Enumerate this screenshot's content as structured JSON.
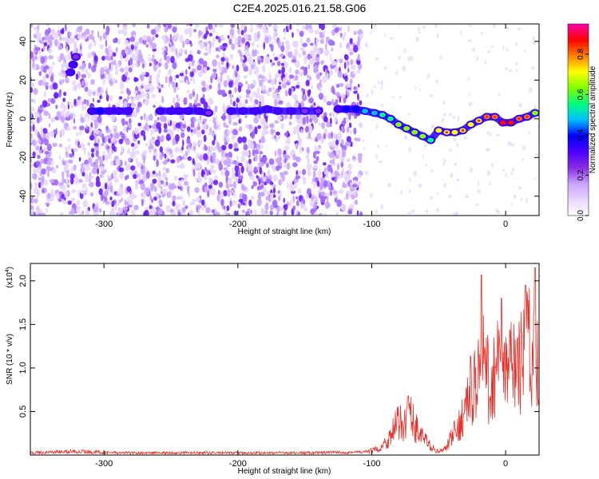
{
  "page": {
    "title": "C2E4.2025.016.21.58.G06"
  },
  "chart_data": [
    {
      "type": "heatmap",
      "xlabel": "Height of straight line (km)",
      "ylabel": "Frequency (Hz)",
      "xlim": [
        -355,
        25
      ],
      "ylim": [
        -50,
        49
      ],
      "xticks": [
        -300,
        -200,
        -100,
        0
      ],
      "yticks": [
        -40,
        -20,
        0,
        20,
        40
      ],
      "colorbar": {
        "label": "Normalized spectral amplitude",
        "range": [
          0,
          0.95
        ],
        "ticks": [
          "0.0",
          "0.2",
          "0.4",
          "0.6",
          "0.8"
        ],
        "colormap": [
          "#ffffff",
          "#e8d5ff",
          "#c9a3ff",
          "#8a2be2",
          "#4b00ff",
          "#0000ff",
          "#00bfff",
          "#00ff80",
          "#80ff00",
          "#ffff00",
          "#ff8000",
          "#ff0000",
          "#ff00aa"
        ]
      },
      "trace": [
        {
          "x": -309,
          "y": 4,
          "a": 0.35
        },
        {
          "x": -303,
          "y": 4,
          "a": 0.4
        },
        {
          "x": -296,
          "y": 4,
          "a": 0.35
        },
        {
          "x": -289,
          "y": 4,
          "a": 0.3
        },
        {
          "x": -282,
          "y": 4,
          "a": 0.3
        },
        {
          "x": -258,
          "y": 4,
          "a": 0.3
        },
        {
          "x": -250,
          "y": 4,
          "a": 0.35
        },
        {
          "x": -244,
          "y": 4,
          "a": 0.3
        },
        {
          "x": -237,
          "y": 4,
          "a": 0.35
        },
        {
          "x": -229,
          "y": 4,
          "a": 0.3
        },
        {
          "x": -222,
          "y": 3,
          "a": 0.25
        },
        {
          "x": -205,
          "y": 4,
          "a": 0.3
        },
        {
          "x": -196,
          "y": 4,
          "a": 0.35
        },
        {
          "x": -187,
          "y": 4,
          "a": 0.35
        },
        {
          "x": -178,
          "y": 5,
          "a": 0.35
        },
        {
          "x": -170,
          "y": 4,
          "a": 0.3
        },
        {
          "x": -160,
          "y": 4,
          "a": 0.3
        },
        {
          "x": -150,
          "y": 4,
          "a": 0.25
        },
        {
          "x": -140,
          "y": 4,
          "a": 0.25
        },
        {
          "x": -125,
          "y": 5,
          "a": 0.35
        },
        {
          "x": -119,
          "y": 5,
          "a": 0.4
        },
        {
          "x": -112,
          "y": 5,
          "a": 0.4
        },
        {
          "x": -105,
          "y": 4,
          "a": 0.45
        },
        {
          "x": -98,
          "y": 3,
          "a": 0.5
        },
        {
          "x": -92,
          "y": 2,
          "a": 0.55
        },
        {
          "x": -86,
          "y": 0,
          "a": 0.55
        },
        {
          "x": -80,
          "y": -3,
          "a": 0.6
        },
        {
          "x": -74,
          "y": -5,
          "a": 0.6
        },
        {
          "x": -68,
          "y": -7,
          "a": 0.65
        },
        {
          "x": -62,
          "y": -9,
          "a": 0.6
        },
        {
          "x": -56,
          "y": -11,
          "a": 0.55
        },
        {
          "x": -50,
          "y": -6,
          "a": 0.7
        },
        {
          "x": -44,
          "y": -7,
          "a": 0.75
        },
        {
          "x": -38,
          "y": -7,
          "a": 0.7
        },
        {
          "x": -32,
          "y": -6,
          "a": 0.75
        },
        {
          "x": -26,
          "y": -3,
          "a": 0.7
        },
        {
          "x": -20,
          "y": -1,
          "a": 0.75
        },
        {
          "x": -14,
          "y": 1,
          "a": 0.8
        },
        {
          "x": -8,
          "y": 1,
          "a": 0.8
        },
        {
          "x": -2,
          "y": -2,
          "a": 0.9
        },
        {
          "x": 4,
          "y": -2,
          "a": 0.9
        },
        {
          "x": 10,
          "y": 0,
          "a": 0.8
        },
        {
          "x": 16,
          "y": 1,
          "a": 0.8
        },
        {
          "x": 22,
          "y": 3,
          "a": 0.65
        }
      ],
      "streak": [
        {
          "x": -325,
          "y": 24,
          "a": 0.3
        },
        {
          "x": -323,
          "y": 28,
          "a": 0.3
        },
        {
          "x": -321,
          "y": 32,
          "a": 0.25
        }
      ]
    },
    {
      "type": "line",
      "xlabel": "Height of straight line (km)",
      "ylabel": "SNR (10 * v/v)",
      "multiplier": "(x10",
      "multiplier_exp": "4",
      "multiplier_close": ")",
      "xlim": [
        -355,
        25
      ],
      "ylim": [
        0,
        2.2
      ],
      "xticks": [
        -300,
        -200,
        -100,
        0
      ],
      "yticks": [
        "0.5",
        "1.0",
        "1.5",
        "2.0"
      ],
      "color": "#e8302a",
      "series": [
        {
          "x": [
            -355,
            -320,
            -290,
            -250,
            -200,
            -150,
            -105,
            -95,
            -88,
            -82,
            -76,
            -72,
            -68,
            -64,
            -60,
            -55,
            -50,
            -45,
            -40,
            -36,
            -33,
            -30,
            -27,
            -24,
            -21,
            -18,
            -15,
            -12,
            -9,
            -6,
            -3,
            0,
            3,
            6,
            9,
            12,
            15,
            18,
            21,
            24
          ],
          "y": [
            0.03,
            0.05,
            0.03,
            0.03,
            0.03,
            0.03,
            0.04,
            0.08,
            0.2,
            0.4,
            0.45,
            0.6,
            0.4,
            0.3,
            0.2,
            0.1,
            0.04,
            0.08,
            0.25,
            0.35,
            0.5,
            0.6,
            0.85,
            0.9,
            1.1,
            1.2,
            1.3,
            0.8,
            1.1,
            1.2,
            1.0,
            1.1,
            1.2,
            1.3,
            1.1,
            1.3,
            1.4,
            1.5,
            1.4,
            1.6
          ]
        }
      ],
      "peaks": [
        {
          "x": -18,
          "y": 2.07
        },
        {
          "x": -3,
          "y": 1.8
        },
        {
          "x": 15,
          "y": 1.95
        },
        {
          "x": 22,
          "y": 2.15
        }
      ]
    }
  ]
}
